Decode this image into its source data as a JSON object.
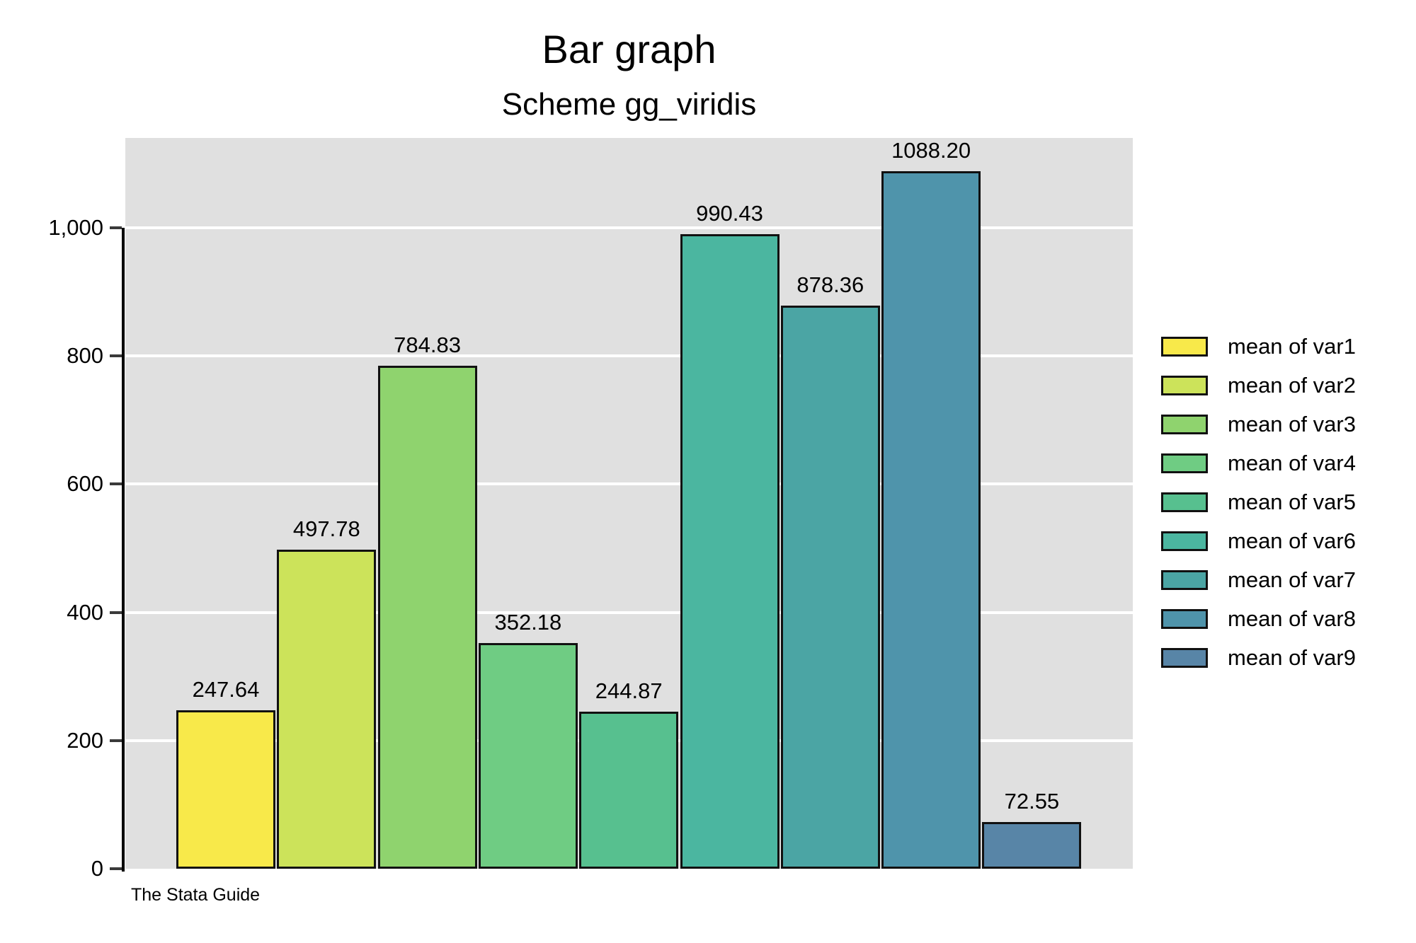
{
  "chart_data": {
    "type": "bar",
    "title": "Bar graph",
    "subtitle": "Scheme gg_viridis",
    "caption": "The Stata Guide",
    "categories": [
      "mean of var1",
      "mean of var2",
      "mean of var3",
      "mean of var4",
      "mean of var5",
      "mean of var6",
      "mean of var7",
      "mean of var8",
      "mean of var9"
    ],
    "values": [
      247.64,
      497.78,
      784.83,
      352.18,
      244.87,
      990.43,
      878.36,
      1088.2,
      72.55
    ],
    "value_labels": [
      "247.64",
      "497.78",
      "784.83",
      "352.18",
      "244.87",
      "990.43",
      "878.36",
      "1088.20",
      "72.55"
    ],
    "bar_colors": [
      "#F8E94A",
      "#CCE35A",
      "#8FD36E",
      "#6FCC83",
      "#57C08F",
      "#4BB6A0",
      "#4BA5A4",
      "#4F94AB",
      "#5885A7"
    ],
    "y_ticks": [
      {
        "value": 0,
        "label": "0"
      },
      {
        "value": 200,
        "label": "200"
      },
      {
        "value": 400,
        "label": "400"
      },
      {
        "value": 600,
        "label": "600"
      },
      {
        "value": 800,
        "label": "800"
      },
      {
        "value": 1000,
        "label": "1,000"
      }
    ],
    "ylim": [
      0,
      1140
    ],
    "xlabel": "",
    "ylabel": "",
    "grid": true,
    "legend_position": "right",
    "plot_background_color": "#E0E0E0",
    "gridline_color": "#FFFFFF",
    "bar_border_color": "#111111"
  }
}
